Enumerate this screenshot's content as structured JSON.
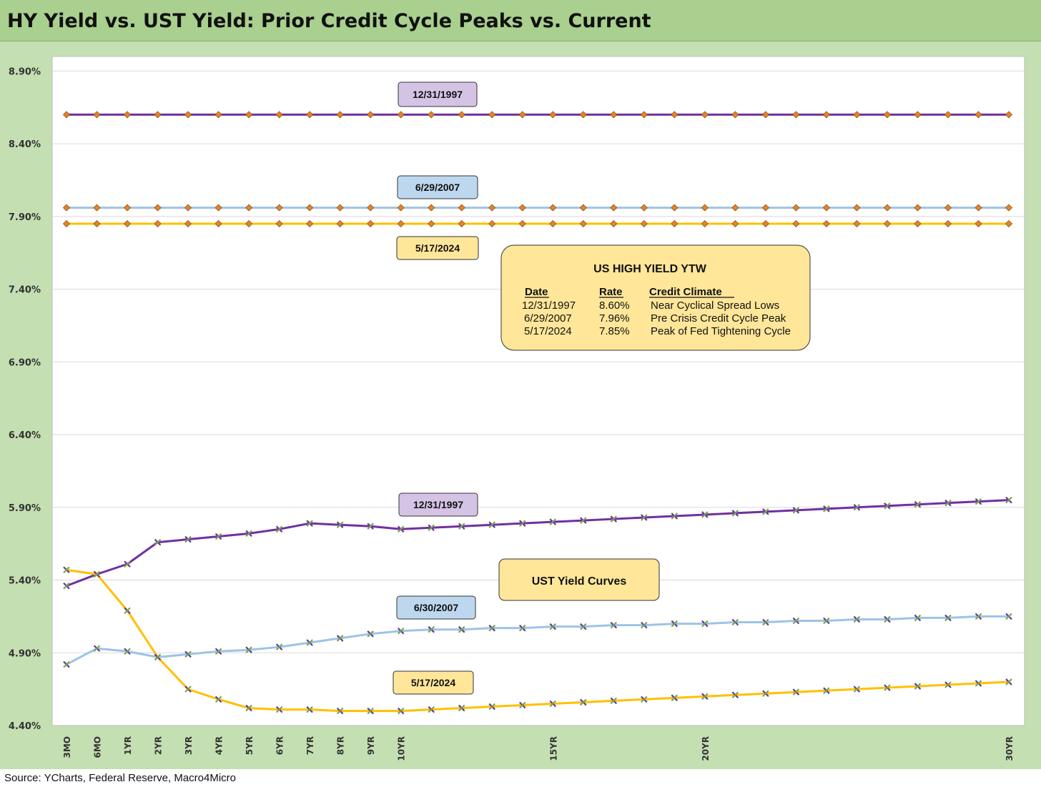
{
  "title": "HY Yield vs. UST Yield: Prior Credit Cycle Peaks vs. Current",
  "source": "Source: YCharts, Federal Reserve, Macro4Micro",
  "chart_data": {
    "type": "line",
    "y_ticks": [
      "4.40%",
      "4.90%",
      "5.40%",
      "5.90%",
      "6.40%",
      "6.90%",
      "7.40%",
      "7.90%",
      "8.40%",
      "8.90%"
    ],
    "ylim": [
      4.4,
      9.0
    ],
    "grid": "horizontal",
    "x_count": 32,
    "x_tick_labels": [
      {
        "i": 0,
        "label": "3MO"
      },
      {
        "i": 1,
        "label": "6MO"
      },
      {
        "i": 2,
        "label": "1YR"
      },
      {
        "i": 3,
        "label": "2YR"
      },
      {
        "i": 4,
        "label": "3YR"
      },
      {
        "i": 5,
        "label": "4YR"
      },
      {
        "i": 6,
        "label": "5YR"
      },
      {
        "i": 7,
        "label": "6YR"
      },
      {
        "i": 8,
        "label": "7YR"
      },
      {
        "i": 9,
        "label": "8YR"
      },
      {
        "i": 10,
        "label": "9YR"
      },
      {
        "i": 11,
        "label": "10YR"
      },
      {
        "i": 16,
        "label": "15YR"
      },
      {
        "i": 21,
        "label": "20YR"
      },
      {
        "i": 31,
        "label": "30YR"
      }
    ],
    "hy_series": [
      {
        "label": "12/31/1997",
        "value": 8.6,
        "color": "#7030a0",
        "label_bg": "#d5c3e6"
      },
      {
        "label": "6/29/2007",
        "value": 7.96,
        "color": "#9dc3e6",
        "label_bg": "#bdd7ee"
      },
      {
        "label": "5/17/2024",
        "value": 7.85,
        "color": "#ffc000",
        "label_bg": "#ffe699"
      }
    ],
    "ust_series": [
      {
        "label": "12/31/1997",
        "color": "#7030a0",
        "label_bg": "#d5c3e6",
        "values": [
          5.36,
          5.44,
          5.51,
          5.66,
          5.68,
          5.7,
          5.72,
          5.75,
          5.79,
          5.78,
          5.77,
          5.75,
          5.76,
          5.77,
          5.78,
          5.79,
          5.8,
          5.81,
          5.82,
          5.83,
          5.84,
          5.85,
          5.86,
          5.87,
          5.88,
          5.89,
          5.9,
          5.91,
          5.92,
          5.93,
          5.94,
          5.95
        ]
      },
      {
        "label": "6/30/2007",
        "color": "#9dc3e6",
        "label_bg": "#bdd7ee",
        "values": [
          4.82,
          4.93,
          4.91,
          4.87,
          4.89,
          4.91,
          4.92,
          4.94,
          4.97,
          5.0,
          5.03,
          5.05,
          5.06,
          5.06,
          5.07,
          5.07,
          5.08,
          5.08,
          5.09,
          5.09,
          5.1,
          5.1,
          5.11,
          5.11,
          5.12,
          5.12,
          5.13,
          5.13,
          5.14,
          5.14,
          5.15,
          5.15
        ]
      },
      {
        "label": "5/17/2024",
        "color": "#ffc000",
        "label_bg": "#ffe699",
        "values": [
          5.47,
          5.44,
          5.19,
          4.87,
          4.65,
          4.58,
          4.52,
          4.51,
          4.51,
          4.5,
          4.5,
          4.5,
          4.51,
          4.52,
          4.53,
          4.54,
          4.55,
          4.56,
          4.57,
          4.58,
          4.59,
          4.6,
          4.61,
          4.62,
          4.63,
          4.64,
          4.65,
          4.66,
          4.67,
          4.68,
          4.69,
          4.7
        ]
      }
    ],
    "hy_table": {
      "heading": "US HIGH YIELD YTW",
      "columns": [
        "Date",
        "Rate",
        "Credit Climate"
      ],
      "rows": [
        [
          "12/31/1997",
          "8.60%",
          "Near Cyclical Spread Lows"
        ],
        [
          "6/29/2007",
          "7.96%",
          "Pre Crisis Credit Cycle Peak"
        ],
        [
          "5/17/2024",
          "7.85%",
          "Peak of Fed Tightening Cycle"
        ]
      ]
    },
    "ust_box_label": "UST Yield Curves"
  }
}
